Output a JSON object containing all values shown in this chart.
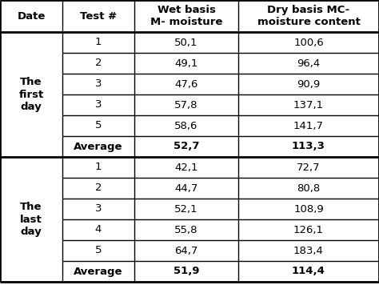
{
  "col_headers": [
    "Date",
    "Test #",
    "Wet basis\nM- moisture",
    "Dry basis MC-\nmoisture content"
  ],
  "section1_label": "The\nfirst\nday",
  "section1_rows": [
    [
      "1",
      "50,1",
      "100,6"
    ],
    [
      "2",
      "49,1",
      "96,4"
    ],
    [
      "3",
      "47,6",
      "90,9"
    ],
    [
      "3",
      "57,8",
      "137,1"
    ],
    [
      "5",
      "58,6",
      "141,7"
    ],
    [
      "Average",
      "52,7",
      "113,3"
    ]
  ],
  "section1_avg_row": 5,
  "section2_label": "The\nlast\nday",
  "section2_rows": [
    [
      "1",
      "42,1",
      "72,7"
    ],
    [
      "2",
      "44,7",
      "80,8"
    ],
    [
      "3",
      "52,1",
      "108,9"
    ],
    [
      "4",
      "55,8",
      "126,1"
    ],
    [
      "5",
      "64,7",
      "183,4"
    ],
    [
      "Average",
      "51,9",
      "114,4"
    ]
  ],
  "section2_avg_row": 5,
  "bg_color": "#ffffff",
  "text_color": "#000000",
  "line_color": "#000000",
  "header_fontsize": 9.5,
  "cell_fontsize": 9.5
}
